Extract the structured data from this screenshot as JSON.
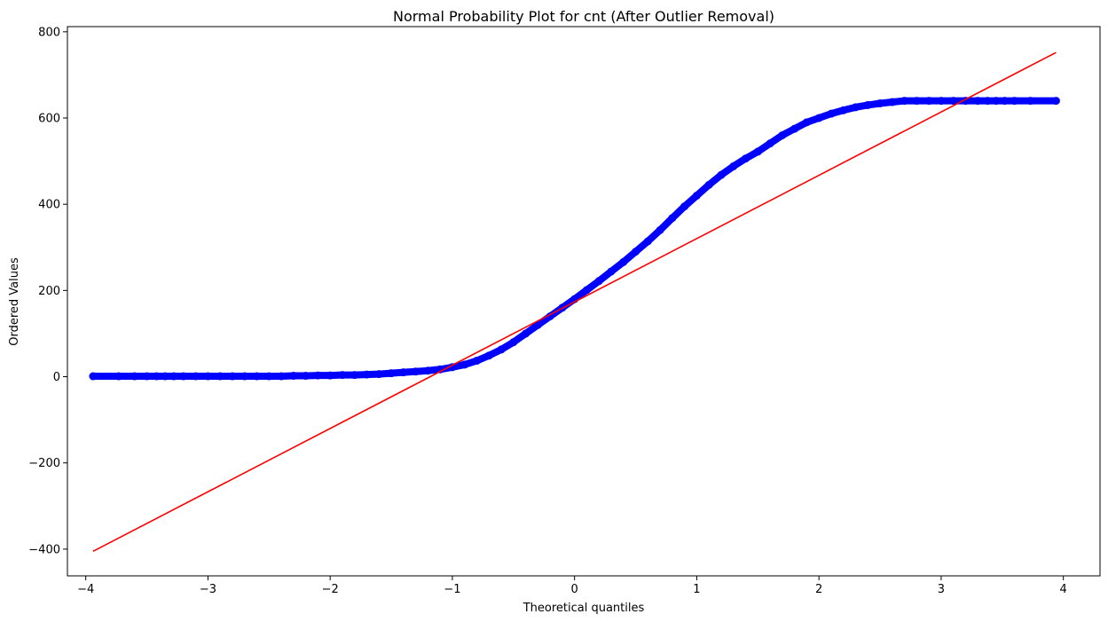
{
  "chart_data": {
    "type": "scatter",
    "title": "Normal Probability Plot for cnt (After Outlier Removal)",
    "xlabel": "Theoretical quantiles",
    "ylabel": "Ordered Values",
    "xlim": [
      -4.15,
      4.3
    ],
    "ylim": [
      -462,
      812
    ],
    "xticks": [
      -4,
      -3,
      -2,
      -1,
      0,
      1,
      2,
      3,
      4
    ],
    "xtick_labels": [
      "−4",
      "−3",
      "−2",
      "−1",
      "0",
      "1",
      "2",
      "3",
      "4"
    ],
    "yticks": [
      -400,
      -200,
      0,
      200,
      400,
      600,
      800
    ],
    "ytick_labels": [
      "−400",
      "−200",
      "0",
      "200",
      "400",
      "600",
      "800"
    ],
    "grid": false,
    "points": {
      "color": "#0000ff",
      "x": [
        -3.94,
        -3.73,
        -3.6,
        -3.5,
        -3.42,
        -3.35,
        -3.28,
        -3.2,
        -3.1,
        -3.0,
        -2.9,
        -2.8,
        -2.7,
        -2.6,
        -2.5,
        -2.4,
        -2.3,
        -2.2,
        -2.1,
        -2.0,
        -1.9,
        -1.8,
        -1.7,
        -1.6,
        -1.5,
        -1.4,
        -1.3,
        -1.2,
        -1.1,
        -1.0,
        -0.9,
        -0.8,
        -0.7,
        -0.6,
        -0.5,
        -0.4,
        -0.3,
        -0.2,
        -0.1,
        0.0,
        0.1,
        0.2,
        0.3,
        0.4,
        0.5,
        0.6,
        0.7,
        0.8,
        0.9,
        1.0,
        1.1,
        1.2,
        1.3,
        1.4,
        1.5,
        1.6,
        1.7,
        1.8,
        1.9,
        2.0,
        2.1,
        2.2,
        2.3,
        2.4,
        2.5,
        2.6,
        2.7,
        2.8,
        2.9,
        3.0,
        3.1,
        3.2,
        3.3,
        3.38,
        3.45,
        3.52,
        3.6,
        3.73,
        3.94
      ],
      "y": [
        1,
        1,
        1,
        1,
        1,
        1,
        1,
        1,
        1,
        1,
        1,
        1,
        1,
        1,
        1,
        1,
        2,
        2,
        3,
        3,
        4,
        4,
        5,
        6,
        8,
        10,
        12,
        14,
        17,
        22,
        28,
        37,
        49,
        63,
        80,
        100,
        120,
        140,
        160,
        180,
        201,
        222,
        244,
        266,
        290,
        314,
        340,
        368,
        395,
        420,
        445,
        468,
        488,
        506,
        522,
        541,
        560,
        575,
        590,
        600,
        610,
        618,
        625,
        630,
        634,
        637,
        640,
        640,
        640,
        640,
        640,
        640,
        640,
        640,
        640,
        640,
        640,
        640,
        640
      ]
    },
    "fit_line": {
      "color": "#ff0000",
      "x": [
        -3.94,
        3.94
      ],
      "y": [
        -405,
        752
      ]
    }
  }
}
